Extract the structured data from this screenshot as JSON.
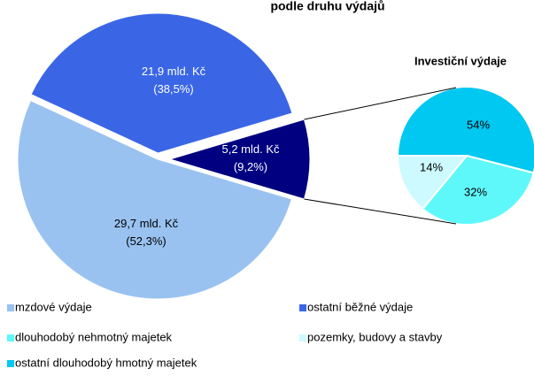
{
  "chart_data": {
    "type": "pie-of-pie",
    "title": "podle druhu výdajů",
    "categories": [
      "mzdové výdaje",
      "ostatní běžné výdaje",
      null
    ],
    "values": [
      52.3,
      38.5,
      9.2
    ],
    "value_labels": [
      [
        "29,7 mld. Kč",
        "(52,3%)"
      ],
      [
        "21,9 mld. Kč",
        "(38,5%)"
      ],
      [
        "5,2 mld. Kč",
        "(9,2%)"
      ]
    ],
    "colors": [
      "#99c2f0",
      "#3a66e6",
      "#000080"
    ],
    "secondary": {
      "title": "Investiční výdaje",
      "categories": [
        "ostatní dlouhodobý hmotný majetek",
        "dlouhodobý nehmotný majetek",
        "pozemky, budovy a stavby"
      ],
      "values": [
        54,
        32,
        14
      ],
      "value_labels": [
        "54%",
        "32%",
        "14%"
      ],
      "colors": [
        "#00c8f0",
        "#5ff8fa",
        "#ccfaff"
      ]
    }
  }
}
